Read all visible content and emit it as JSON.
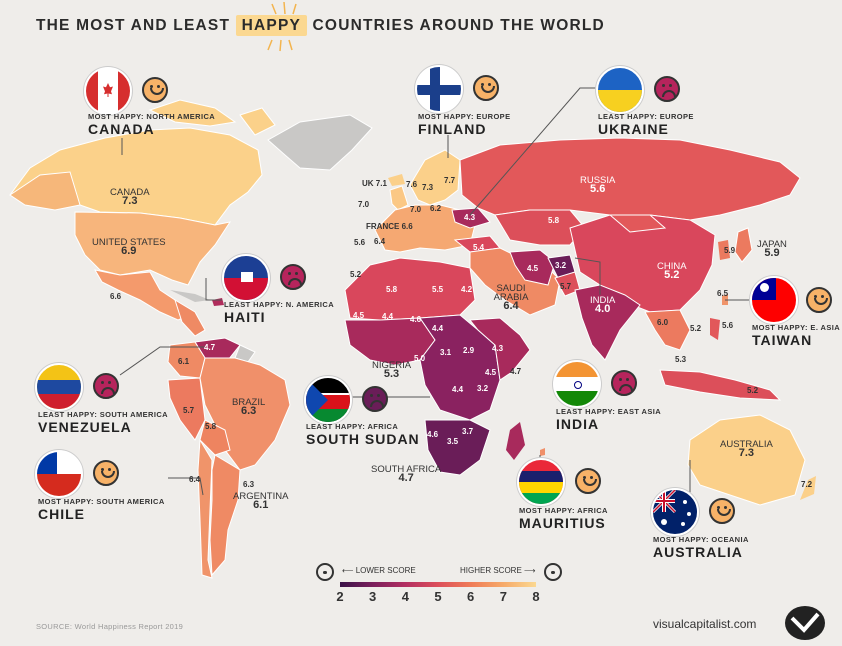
{
  "title": {
    "pre": "THE MOST AND LEAST ",
    "highlight": "HAPPY",
    "post": " COUNTRIES AROUND THE WORLD"
  },
  "map_labels": [
    {
      "id": "canada",
      "text": "CANADA",
      "value": "7.3"
    },
    {
      "id": "usa",
      "text": "UNITED STATES",
      "value": "6.9"
    },
    {
      "id": "mexico",
      "value": "6.6"
    },
    {
      "id": "venezuela",
      "value": "4.7"
    },
    {
      "id": "colombia",
      "value": "6.1"
    },
    {
      "id": "brazil",
      "text": "BRAZIL",
      "value": "6.3"
    },
    {
      "id": "peru",
      "value": "5.7"
    },
    {
      "id": "bolivia",
      "value": "5.8"
    },
    {
      "id": "chile",
      "value": "6.4"
    },
    {
      "id": "argentina",
      "text": "ARGENTINA",
      "value": "6.1"
    },
    {
      "id": "arg2",
      "value": "6.3"
    },
    {
      "id": "uk",
      "text": "UK",
      "value": "7.1"
    },
    {
      "id": "ireland",
      "value": "7.0"
    },
    {
      "id": "france",
      "text": "FRANCE",
      "value": "6.6"
    },
    {
      "id": "spain",
      "value": "6.4"
    },
    {
      "id": "portugal",
      "value": "5.6"
    },
    {
      "id": "norway",
      "value": "7.6"
    },
    {
      "id": "sweden",
      "value": "7.3"
    },
    {
      "id": "finland",
      "value": "7.7"
    },
    {
      "id": "germany",
      "value": "7.0"
    },
    {
      "id": "poland",
      "value": "6.2"
    },
    {
      "id": "ukraine",
      "value": "4.3"
    },
    {
      "id": "turkey",
      "value": "5.4"
    },
    {
      "id": "russia",
      "text": "RUSSIA",
      "value": "5.6"
    },
    {
      "id": "kazakhstan",
      "value": "5.8"
    },
    {
      "id": "iran",
      "value": "4.5"
    },
    {
      "id": "afghanistan",
      "value": "3.2"
    },
    {
      "id": "pakistan",
      "value": "5.7"
    },
    {
      "id": "india",
      "text": "INDIA",
      "value": "4.0"
    },
    {
      "id": "china",
      "text": "CHINA",
      "value": "5.2"
    },
    {
      "id": "japan",
      "text": "JAPAN",
      "value": "5.9"
    },
    {
      "id": "korea",
      "value": "5.9"
    },
    {
      "id": "taiwan",
      "value": "6.5"
    },
    {
      "id": "thailand",
      "value": "6.0"
    },
    {
      "id": "vietnam",
      "value": "5.2"
    },
    {
      "id": "philippines",
      "value": "5.6"
    },
    {
      "id": "malaysia",
      "value": "5.3"
    },
    {
      "id": "indonesia",
      "value": "5.2"
    },
    {
      "id": "australia",
      "text": "AUSTRALIA",
      "value": "7.3"
    },
    {
      "id": "nz",
      "value": "7.2"
    },
    {
      "id": "saudi",
      "text": "SAUDI ARABIA",
      "value": "6.4"
    },
    {
      "id": "morocco",
      "value": "5.2"
    },
    {
      "id": "algeria",
      "value": "5.8"
    },
    {
      "id": "libya",
      "value": "5.5"
    },
    {
      "id": "egypt",
      "value": "4.2"
    },
    {
      "id": "mali",
      "value": "4.5"
    },
    {
      "id": "niger",
      "value": "4.4"
    },
    {
      "id": "chad",
      "value": "4.6"
    },
    {
      "id": "sudan",
      "value": "4.4"
    },
    {
      "id": "nigeria",
      "text": "NIGERIA",
      "value": "5.3"
    },
    {
      "id": "car",
      "value": "3.1"
    },
    {
      "id": "ssudan",
      "value": "2.9"
    },
    {
      "id": "ethiopia",
      "value": "4.3"
    },
    {
      "id": "cameroon",
      "value": "5.0"
    },
    {
      "id": "kenya",
      "value": "4.5"
    },
    {
      "id": "tanzania",
      "value": "3.2"
    },
    {
      "id": "drc",
      "value": "4.4"
    },
    {
      "id": "somalia",
      "value": "4.7"
    },
    {
      "id": "zambia",
      "value": "3.7"
    },
    {
      "id": "zimbabwe",
      "value": "3.5"
    },
    {
      "id": "angola",
      "value": "4.6"
    },
    {
      "id": "southafrica",
      "text": "SOUTH AFRICA",
      "value": "4.7"
    }
  ],
  "callouts": {
    "canada": {
      "sub": "MOST HAPPY: NORTH AMERICA",
      "name": "CANADA"
    },
    "haiti": {
      "sub": "LEAST HAPPY: N. AMERICA",
      "name": "HAITI"
    },
    "venezuela": {
      "sub": "LEAST HAPPY: SOUTH AMERICA",
      "name": "VENEZUELA"
    },
    "chile": {
      "sub": "MOST HAPPY: SOUTH AMERICA",
      "name": "CHILE"
    },
    "finland": {
      "sub": "MOST HAPPY: EUROPE",
      "name": "FINLAND"
    },
    "ukraine": {
      "sub": "LEAST HAPPY: EUROPE",
      "name": "UKRAINE"
    },
    "ssudan": {
      "sub": "LEAST HAPPY: AFRICA",
      "name": "SOUTH SUDAN"
    },
    "mauritius": {
      "sub": "MOST HAPPY: AFRICA",
      "name": "MAURITIUS"
    },
    "india": {
      "sub": "LEAST HAPPY: EAST ASIA",
      "name": "INDIA"
    },
    "taiwan": {
      "sub": "MOST HAPPY: E. ASIA",
      "name": "TAIWAN"
    },
    "australia": {
      "sub": "MOST HAPPY: OCEANIA",
      "name": "AUSTRALIA"
    }
  },
  "legend": {
    "lower": "LOWER SCORE",
    "higher": "HIGHER SCORE",
    "ticks": [
      "2",
      "3",
      "4",
      "5",
      "6",
      "7",
      "8"
    ],
    "colors": [
      "#3a1248",
      "#7a1f5c",
      "#b32f62",
      "#dc4f5a",
      "#ef7b57",
      "#f6aa6a",
      "#fbd891"
    ]
  },
  "source": "SOURCE: World Happiness Report 2019",
  "brand": "visualcapitalist.com"
}
